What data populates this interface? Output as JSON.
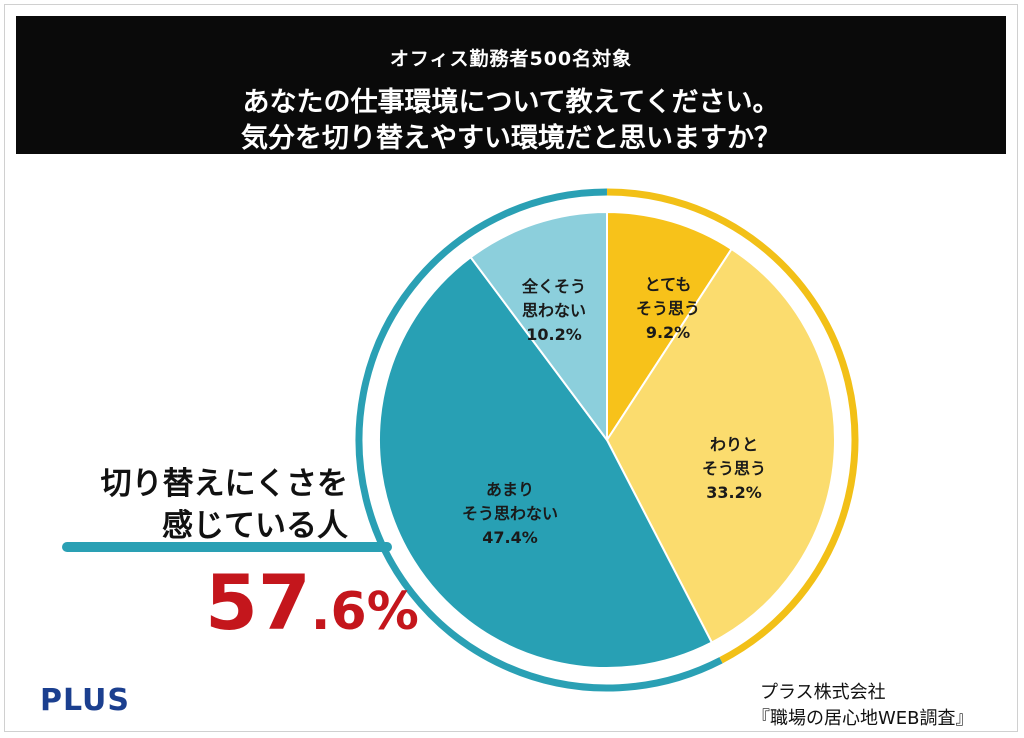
{
  "header": {
    "subtitle": "オフィス勤務者500名対象",
    "question_line1": "あなたの仕事環境について教えてください。",
    "question_line2": "気分を切り替えやすい環境だと思いますか？"
  },
  "chart_data": {
    "type": "pie",
    "start": "12 o'clock",
    "direction": "clockwise",
    "unit": "%",
    "slices": [
      {
        "label_lines": [
          "とても",
          "そう思う"
        ],
        "value": 9.2,
        "value_text": "9.2%",
        "color": "#f7c21a"
      },
      {
        "label_lines": [
          "わりと",
          "そう思う"
        ],
        "value": 33.2,
        "value_text": "33.2%",
        "color": "#fbdc6e"
      },
      {
        "label_lines": [
          "あまり",
          "そう思わない"
        ],
        "value": 47.4,
        "value_text": "47.4%",
        "color": "#28a0b4"
      },
      {
        "label_lines": [
          "全くそう",
          "思わない"
        ],
        "value": 10.2,
        "value_text": "10.2%",
        "color": "#8ccfdc"
      }
    ],
    "outer_ring": [
      {
        "covers": "positive",
        "color": "#f2c017"
      },
      {
        "covers": "negative",
        "color": "#2aa0b4"
      }
    ]
  },
  "callout": {
    "label_line1": "切り替えにくさを",
    "label_line2": "感じている人",
    "value_int": "57",
    "value_dec": ".6%",
    "value_color": "#c4161c",
    "line_color": "#2aa0b4"
  },
  "footer": {
    "logo": "PLUS",
    "logo_color": "#1b3f8f",
    "company": "プラス株式会社",
    "survey": "『職場の居心地WEB調査』"
  }
}
